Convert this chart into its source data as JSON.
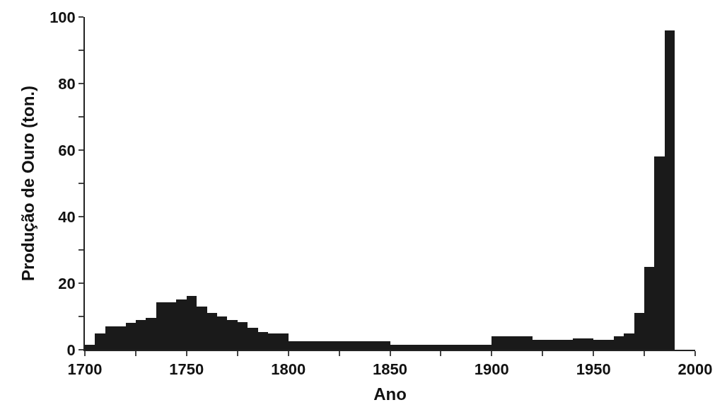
{
  "chart_data": {
    "type": "histogram",
    "xlabel": "Ano",
    "ylabel": "Produção de Ouro (ton.)",
    "bins": [
      1700,
      1705,
      1710,
      1715,
      1720,
      1725,
      1730,
      1735,
      1740,
      1745,
      1750,
      1755,
      1760,
      1765,
      1770,
      1775,
      1780,
      1785,
      1790,
      1795,
      1800,
      1805,
      1810,
      1815,
      1820,
      1825,
      1830,
      1835,
      1840,
      1845,
      1850,
      1855,
      1860,
      1865,
      1870,
      1875,
      1880,
      1885,
      1890,
      1895,
      1900,
      1905,
      1910,
      1915,
      1920,
      1925,
      1930,
      1935,
      1940,
      1945,
      1950,
      1955,
      1960,
      1965,
      1970,
      1975,
      1980,
      1985,
      1990
    ],
    "values": [
      1.5,
      5,
      7,
      7,
      8,
      9,
      9.5,
      14.3,
      14.3,
      15.2,
      16.2,
      13,
      11,
      10,
      9,
      8.3,
      6.5,
      5.4,
      5,
      5,
      2.5,
      2.5,
      2.5,
      2.5,
      2.5,
      2.5,
      2.5,
      2.5,
      2.5,
      2.5,
      1.5,
      1.5,
      1.5,
      1.5,
      1.5,
      1.5,
      1.5,
      1.5,
      1.5,
      1.5,
      4,
      4,
      4,
      4,
      3,
      3,
      3,
      3,
      3.5,
      3.5,
      3,
      3,
      4,
      5,
      11,
      25,
      58,
      96
    ],
    "color": "#1a1a1a",
    "xlim": [
      1700,
      2000
    ],
    "xticks": [
      1700,
      {
        "value": 1725,
        "label": null
      },
      1750,
      {
        "value": 1775,
        "label": null
      },
      1800,
      {
        "value": 1825,
        "label": null
      },
      1850,
      {
        "value": 1875,
        "label": null
      },
      1900,
      {
        "value": 1925,
        "label": null
      },
      1950,
      {
        "value": 1975,
        "label": null
      },
      2000
    ],
    "ylim": [
      0,
      100
    ],
    "yticks": [
      0,
      {
        "value": 10,
        "label": null
      },
      20,
      {
        "value": 30,
        "label": null
      },
      40,
      {
        "value": 50,
        "label": null
      },
      60,
      {
        "value": 70,
        "label": null
      },
      80,
      {
        "value": 90,
        "label": null
      },
      100
    ]
  }
}
